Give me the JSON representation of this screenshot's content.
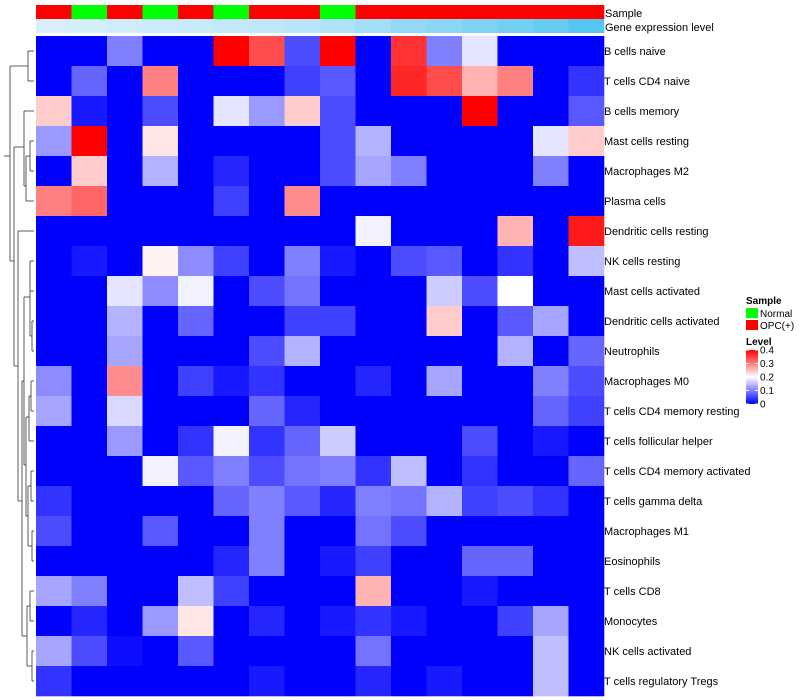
{
  "chart_data": {
    "type": "heatmap",
    "title": "",
    "xlabel": "",
    "ylabel": "",
    "annotation_labels": {
      "sample": "Sample",
      "gene_expression": "Gene expression level"
    },
    "columns": 16,
    "sample_groups": [
      "OPC(+)",
      "Normal",
      "OPC(+)",
      "Normal",
      "OPC(+)",
      "Normal",
      "OPC(+)",
      "OPC(+)",
      "Normal",
      "OPC(+)",
      "OPC(+)",
      "OPC(+)",
      "OPC(+)",
      "OPC(+)",
      "OPC(+)",
      "OPC(+)"
    ],
    "gene_expression_level": [
      0.05,
      0.08,
      0.12,
      0.14,
      0.16,
      0.2,
      0.24,
      0.28,
      0.34,
      0.45,
      0.55,
      0.62,
      0.7,
      0.78,
      0.88,
      1.0
    ],
    "rows": [
      "B cells naive",
      "T cells CD4 naive",
      "B cells memory",
      "Mast cells resting",
      "Macrophages M2",
      "Plasma cells",
      "Dendritic cells resting",
      "NK cells resting",
      "Mast cells activated",
      "Dendritic cells activated",
      "Neutrophils",
      "Macrophages M0",
      "T cells CD4 memory resting",
      "T cells follicular helper",
      "T cells CD4 memory activated",
      "T cells gamma delta",
      "Macrophages M1",
      "Eosinophils",
      "T cells CD8",
      "Monocytes",
      "NK cells activated",
      "T cells regulatory  Tregs"
    ],
    "values": [
      [
        0,
        0,
        0.1,
        0,
        0,
        0.4,
        0.34,
        0.06,
        0.4,
        0,
        0.36,
        0.1,
        0.18,
        0,
        0,
        0
      ],
      [
        0,
        0.08,
        0,
        0.3,
        0,
        0,
        0,
        0.05,
        0.07,
        0,
        0.37,
        0.34,
        0.26,
        0.3,
        0,
        0.04
      ],
      [
        0.24,
        0.02,
        0,
        0.06,
        0,
        0.18,
        0.12,
        0.24,
        0.06,
        0,
        0,
        0,
        0.4,
        0,
        0,
        0.07
      ],
      [
        0.12,
        0.4,
        0,
        0.22,
        0,
        0,
        0,
        0,
        0.06,
        0.14,
        0,
        0,
        0,
        0,
        0.18,
        0.24
      ],
      [
        0,
        0.24,
        0,
        0.14,
        0,
        0.03,
        0,
        0,
        0.06,
        0.13,
        0.1,
        0,
        0,
        0,
        0.1,
        0
      ],
      [
        0.3,
        0.32,
        0,
        0,
        0,
        0.05,
        0,
        0.29,
        0,
        0,
        0,
        0,
        0,
        0,
        0,
        0
      ],
      [
        0,
        0,
        0,
        0,
        0,
        0,
        0,
        0,
        0,
        0.19,
        0,
        0,
        0,
        0.26,
        0,
        0.38
      ],
      [
        0,
        0.02,
        0,
        0.21,
        0.11,
        0.05,
        0,
        0.1,
        0.02,
        0,
        0.06,
        0.07,
        0,
        0.04,
        0,
        0.15
      ],
      [
        0,
        0,
        0.18,
        0.11,
        0.19,
        0,
        0.06,
        0.09,
        0,
        0,
        0,
        0.16,
        0.06,
        0.2,
        0,
        0
      ],
      [
        0,
        0,
        0.14,
        0,
        0.08,
        0,
        0,
        0.05,
        0.05,
        0,
        0,
        0.24,
        0,
        0.07,
        0.13,
        0
      ],
      [
        0,
        0,
        0.13,
        0,
        0,
        0,
        0.06,
        0.14,
        0,
        0,
        0,
        0,
        0,
        0.14,
        0,
        0.08
      ],
      [
        0.11,
        0,
        0.29,
        0,
        0.05,
        0.02,
        0.04,
        0,
        0,
        0.03,
        0,
        0.13,
        0,
        0,
        0.1,
        0.06
      ],
      [
        0.13,
        0,
        0.17,
        0,
        0,
        0,
        0.08,
        0.03,
        0,
        0,
        0,
        0,
        0,
        0,
        0.08,
        0.05
      ],
      [
        0,
        0,
        0.12,
        0,
        0.04,
        0.19,
        0.04,
        0.08,
        0.16,
        0,
        0,
        0,
        0.06,
        0,
        0.02,
        0
      ],
      [
        0,
        0,
        0,
        0.19,
        0.07,
        0.1,
        0.06,
        0.09,
        0.1,
        0.04,
        0.15,
        0,
        0.04,
        0,
        0,
        0.08
      ],
      [
        0.04,
        0,
        0,
        0,
        0,
        0.08,
        0.1,
        0.07,
        0.03,
        0.1,
        0.09,
        0.14,
        0.05,
        0.06,
        0.04,
        0
      ],
      [
        0.06,
        0,
        0,
        0.07,
        0,
        0,
        0.1,
        0,
        0,
        0.09,
        0.06,
        0,
        0,
        0,
        0,
        0
      ],
      [
        0,
        0,
        0,
        0,
        0,
        0.03,
        0.1,
        0,
        0.02,
        0.05,
        0,
        0,
        0.08,
        0.08,
        0,
        0
      ],
      [
        0.13,
        0.1,
        0,
        0,
        0.15,
        0.05,
        0,
        0,
        0,
        0.26,
        0,
        0,
        0.02,
        0,
        0,
        0
      ],
      [
        0,
        0.03,
        0,
        0.12,
        0.22,
        0,
        0.03,
        0,
        0.02,
        0.04,
        0.02,
        0,
        0,
        0.05,
        0.13,
        0
      ],
      [
        0.13,
        0.06,
        0.01,
        0,
        0.07,
        0,
        0,
        0,
        0,
        0.09,
        0,
        0,
        0,
        0,
        0.15,
        0
      ],
      [
        0.04,
        0,
        0,
        0,
        0,
        0,
        0.02,
        0,
        0,
        0.03,
        0,
        0.02,
        0,
        0,
        0.15,
        0
      ]
    ],
    "color_scale": {
      "min": 0,
      "mid": 0.2,
      "max": 0.4,
      "low": "#0000ff",
      "midcolor": "#ffffff",
      "high": "#ff0000"
    },
    "legend": {
      "sample_title": "Sample",
      "sample_entries": [
        {
          "label": "Normal",
          "color": "#00ff00"
        },
        {
          "label": "OPC(+)",
          "color": "#ff0000"
        }
      ],
      "level_title": "Level",
      "level_ticks": [
        "0.4",
        "0.3",
        "0.2",
        "0.1",
        "0"
      ]
    },
    "annotation_colors": {
      "Normal": "#00ff00",
      "OPC(+)": "#ff0000",
      "expression_low": "#dff1fb",
      "expression_high": "#55c6f1"
    },
    "dendrogram": "row clustering tree drawn on the left"
  }
}
